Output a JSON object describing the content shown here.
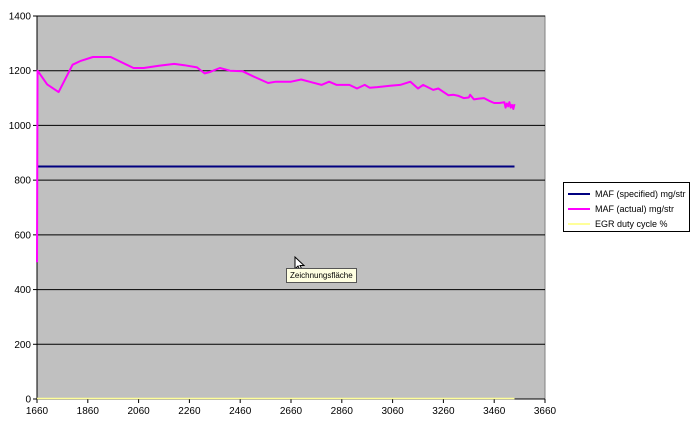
{
  "chart_data": {
    "type": "line",
    "title": "",
    "xlabel": "",
    "ylabel": "",
    "xlim": [
      1660,
      3660
    ],
    "ylim": [
      0,
      1400
    ],
    "x_ticks": [
      1660,
      1860,
      2060,
      2260,
      2460,
      2660,
      2860,
      3060,
      3260,
      3460,
      3660
    ],
    "y_ticks": [
      0,
      200,
      400,
      600,
      800,
      1000,
      1200,
      1400
    ],
    "grid": "horizontal",
    "plot_background": "#c0c0c0",
    "legend_position": "right",
    "series": [
      {
        "name": "MAF (specified) mg/str",
        "color": "#000080",
        "points": [
          [
            1660,
            850
          ],
          [
            3540,
            850
          ]
        ]
      },
      {
        "name": "MAF (actual) mg/str",
        "color": "#ff00ff",
        "points": [
          [
            1660,
            500
          ],
          [
            1662,
            1200
          ],
          [
            1670,
            1190
          ],
          [
            1700,
            1150
          ],
          [
            1745,
            1122
          ],
          [
            1800,
            1222
          ],
          [
            1830,
            1235
          ],
          [
            1880,
            1250
          ],
          [
            1950,
            1250
          ],
          [
            2040,
            1210
          ],
          [
            2080,
            1210
          ],
          [
            2140,
            1218
          ],
          [
            2200,
            1225
          ],
          [
            2240,
            1220
          ],
          [
            2290,
            1212
          ],
          [
            2320,
            1190
          ],
          [
            2340,
            1195
          ],
          [
            2380,
            1210
          ],
          [
            2420,
            1200
          ],
          [
            2470,
            1198
          ],
          [
            2510,
            1180
          ],
          [
            2570,
            1155
          ],
          [
            2600,
            1160
          ],
          [
            2660,
            1160
          ],
          [
            2700,
            1168
          ],
          [
            2740,
            1158
          ],
          [
            2780,
            1148
          ],
          [
            2810,
            1160
          ],
          [
            2840,
            1148
          ],
          [
            2890,
            1148
          ],
          [
            2920,
            1135
          ],
          [
            2950,
            1148
          ],
          [
            2970,
            1138
          ],
          [
            3000,
            1140
          ],
          [
            3050,
            1145
          ],
          [
            3090,
            1148
          ],
          [
            3130,
            1160
          ],
          [
            3160,
            1135
          ],
          [
            3180,
            1148
          ],
          [
            3220,
            1130
          ],
          [
            3240,
            1135
          ],
          [
            3280,
            1110
          ],
          [
            3300,
            1112
          ],
          [
            3320,
            1108
          ],
          [
            3340,
            1100
          ],
          [
            3360,
            1102
          ],
          [
            3365,
            1112
          ],
          [
            3380,
            1095
          ],
          [
            3400,
            1098
          ],
          [
            3420,
            1100
          ],
          [
            3440,
            1090
          ],
          [
            3460,
            1082
          ],
          [
            3480,
            1082
          ],
          [
            3500,
            1085
          ],
          [
            3505,
            1065
          ],
          [
            3510,
            1080
          ],
          [
            3515,
            1070
          ],
          [
            3520,
            1085
          ],
          [
            3525,
            1065
          ],
          [
            3530,
            1075
          ],
          [
            3535,
            1060
          ],
          [
            3540,
            1078
          ]
        ]
      },
      {
        "name": "EGR duty cycle %",
        "color": "#ffff99",
        "points": [
          [
            1660,
            2
          ],
          [
            3540,
            2
          ]
        ]
      }
    ]
  },
  "tooltip_text": "Zeichnungsfläche"
}
